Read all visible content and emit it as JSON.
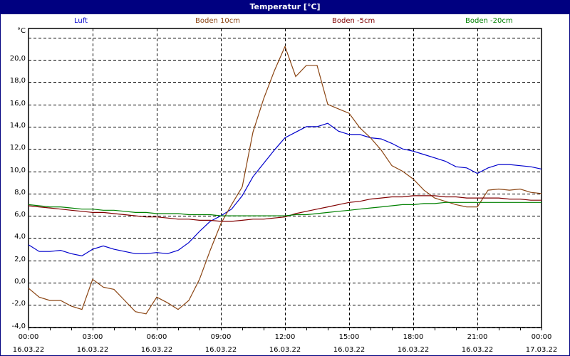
{
  "window": {
    "title": "Temperatur [°C]"
  },
  "chart_data": {
    "type": "line",
    "title": "Temperatur [°C]",
    "ylabel": "°C",
    "xlabel": "",
    "ylim": [
      -4.0,
      22.8
    ],
    "grid": true,
    "legend_position": "top",
    "y_ticks": [
      "20,0",
      "18,0",
      "16,0",
      "14,0",
      "12,0",
      "10,0",
      "8,0",
      "6,0",
      "4,0",
      "2,0",
      "0,0",
      "-2,0",
      "-4,0"
    ],
    "x_ticks": [
      {
        "time": "00:00",
        "date": "16.03.22"
      },
      {
        "time": "03:00",
        "date": "16.03.22"
      },
      {
        "time": "06:00",
        "date": "16.03.22"
      },
      {
        "time": "09:00",
        "date": "16.03.22"
      },
      {
        "time": "12:00",
        "date": "16.03.22"
      },
      {
        "time": "15:00",
        "date": "16.03.22"
      },
      {
        "time": "18:00",
        "date": "16.03.22"
      },
      {
        "time": "21:00",
        "date": "16.03.22"
      },
      {
        "time": "00:00",
        "date": "17.03.22"
      }
    ],
    "x_hours": [
      0,
      0.5,
      1,
      1.5,
      2,
      2.5,
      3,
      3.5,
      4,
      4.5,
      5,
      5.5,
      6,
      6.5,
      7,
      7.5,
      8,
      8.5,
      9,
      9.5,
      10,
      10.5,
      11,
      11.5,
      12,
      12.5,
      13,
      13.5,
      14,
      14.5,
      15,
      15.5,
      16,
      16.5,
      17,
      17.5,
      18,
      18.5,
      19,
      19.5,
      20,
      20.5,
      21,
      21.5,
      22,
      22.5,
      23,
      23.5,
      24
    ],
    "series": [
      {
        "name": "Luft",
        "color": "#0000CC",
        "values": [
          3.4,
          2.8,
          2.8,
          2.9,
          2.6,
          2.4,
          3.0,
          3.3,
          3.0,
          2.8,
          2.6,
          2.6,
          2.7,
          2.6,
          2.9,
          3.6,
          4.6,
          5.5,
          6.0,
          6.6,
          7.8,
          9.5,
          10.7,
          11.9,
          13.0,
          13.5,
          14.0,
          14.0,
          14.3,
          13.6,
          13.3,
          13.3,
          13.0,
          12.9,
          12.5,
          12.0,
          11.8,
          11.5,
          11.2,
          10.9,
          10.4,
          10.3,
          9.8,
          10.3,
          10.6,
          10.6,
          10.5,
          10.4,
          10.2
        ]
      },
      {
        "name": "Boden 10cm",
        "color": "#8B4513",
        "values": [
          -0.5,
          -1.3,
          -1.6,
          -1.6,
          -2.1,
          -2.4,
          0.3,
          -0.4,
          -0.6,
          -1.6,
          -2.6,
          -2.8,
          -1.3,
          -1.8,
          -2.4,
          -1.6,
          0.3,
          2.9,
          5.3,
          7.0,
          8.6,
          13.5,
          16.5,
          19.0,
          21.2,
          18.5,
          19.5,
          19.5,
          16.0,
          15.6,
          15.2,
          13.9,
          13.0,
          11.9,
          10.5,
          10.0,
          9.3,
          8.3,
          7.6,
          7.3,
          7.0,
          6.8,
          6.8,
          8.3,
          8.4,
          8.3,
          8.4,
          8.1,
          8.0
        ]
      },
      {
        "name": "Boden -5cm",
        "color": "#800000",
        "values": [
          6.9,
          6.8,
          6.7,
          6.6,
          6.5,
          6.4,
          6.3,
          6.3,
          6.2,
          6.1,
          6.0,
          5.9,
          5.9,
          5.8,
          5.7,
          5.7,
          5.6,
          5.6,
          5.5,
          5.5,
          5.6,
          5.7,
          5.7,
          5.8,
          5.9,
          6.2,
          6.4,
          6.6,
          6.8,
          7.0,
          7.2,
          7.3,
          7.5,
          7.6,
          7.7,
          7.7,
          7.8,
          7.8,
          7.8,
          7.7,
          7.7,
          7.6,
          7.6,
          7.6,
          7.6,
          7.5,
          7.5,
          7.4,
          7.4
        ]
      },
      {
        "name": "Boden -20cm",
        "color": "#008000",
        "values": [
          7.0,
          6.9,
          6.8,
          6.8,
          6.7,
          6.6,
          6.6,
          6.5,
          6.5,
          6.4,
          6.3,
          6.3,
          6.2,
          6.2,
          6.2,
          6.1,
          6.1,
          6.1,
          6.0,
          6.0,
          6.0,
          6.0,
          6.0,
          6.0,
          6.0,
          6.1,
          6.1,
          6.2,
          6.3,
          6.4,
          6.5,
          6.6,
          6.7,
          6.8,
          6.9,
          7.0,
          7.0,
          7.1,
          7.1,
          7.2,
          7.2,
          7.2,
          7.2,
          7.2,
          7.2,
          7.2,
          7.2,
          7.2,
          7.2
        ]
      }
    ]
  }
}
